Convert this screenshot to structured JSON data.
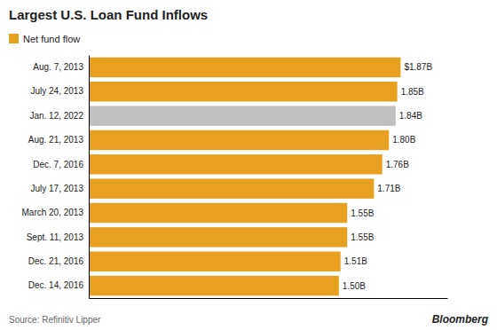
{
  "chart_data": {
    "type": "bar",
    "orientation": "horizontal",
    "title": "Largest U.S. Loan Fund Inflows",
    "categories": [
      "Aug. 7, 2013",
      "July 24, 2013",
      "Jan. 12, 2022",
      "Aug. 21, 2013",
      "Dec. 7, 2016",
      "July 17, 2013",
      "March 20, 2013",
      "Sept. 11, 2013",
      "Dec. 21, 2016",
      "Dec. 14, 2016"
    ],
    "series": [
      {
        "name": "Net fund flow",
        "color": "#E8A020",
        "colors": [
          "#E8A020",
          "#E8A020",
          "#C0C0C0",
          "#E8A020",
          "#E8A020",
          "#E8A020",
          "#E8A020",
          "#E8A020",
          "#E8A020",
          "#E8A020"
        ],
        "values": [
          1.87,
          1.85,
          1.84,
          1.8,
          1.76,
          1.71,
          1.55,
          1.55,
          1.51,
          1.5
        ],
        "value_labels": [
          "$1.87B",
          "1.85B",
          "1.84B",
          "1.80B",
          "1.76B",
          "1.71B",
          "1.55B",
          "1.55B",
          "1.51B",
          "1.50B"
        ]
      }
    ],
    "xlim": [
      0,
      2.15
    ],
    "data_labels": true,
    "tick_labels": "y",
    "grid": false,
    "annotations": [
      "Source: Refinitiv Lipper",
      "Bloomberg"
    ]
  }
}
